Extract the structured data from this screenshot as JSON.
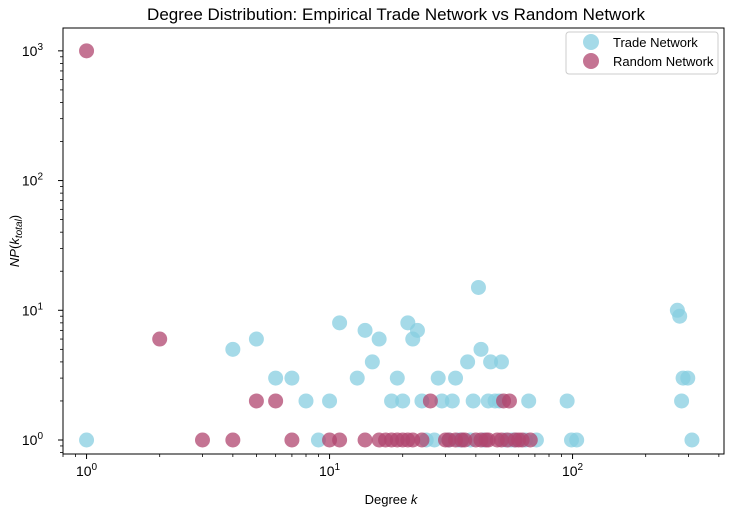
{
  "chart_data": {
    "type": "scatter",
    "title": "Degree Distribution: Empirical Trade Network vs Random Network",
    "xlabel": "Degree",
    "xlabel_var": "k",
    "ylabel": "NP",
    "ylabel_var": "k",
    "ylabel_sub": "total",
    "x_scale": "log",
    "y_scale": "log",
    "xlim": [
      0.8,
      420
    ],
    "ylim": [
      0.78,
      1500
    ],
    "x_ticks": [
      {
        "base": "10",
        "exp": "0",
        "value": 1
      },
      {
        "base": "10",
        "exp": "1",
        "value": 10
      },
      {
        "base": "10",
        "exp": "2",
        "value": 100
      }
    ],
    "y_ticks": [
      {
        "base": "10",
        "exp": "0",
        "value": 1
      },
      {
        "base": "10",
        "exp": "1",
        "value": 10
      },
      {
        "base": "10",
        "exp": "2",
        "value": 100
      },
      {
        "base": "10",
        "exp": "3",
        "value": 1000
      }
    ],
    "grid": false,
    "legend_position": "top-right",
    "series": [
      {
        "name": "Trade Network",
        "color": "#87CEE0",
        "points": [
          [
            1,
            1
          ],
          [
            4,
            5
          ],
          [
            5,
            6
          ],
          [
            6,
            3
          ],
          [
            7,
            3
          ],
          [
            8,
            2
          ],
          [
            9,
            1
          ],
          [
            10,
            2
          ],
          [
            11,
            8
          ],
          [
            13,
            3
          ],
          [
            14,
            7
          ],
          [
            15,
            4
          ],
          [
            16,
            6
          ],
          [
            18,
            2
          ],
          [
            19,
            3
          ],
          [
            20,
            2
          ],
          [
            21,
            8
          ],
          [
            22,
            6
          ],
          [
            23,
            7
          ],
          [
            24,
            2
          ],
          [
            25,
            1
          ],
          [
            27,
            1
          ],
          [
            28,
            3
          ],
          [
            29,
            2
          ],
          [
            31,
            1
          ],
          [
            32,
            2
          ],
          [
            33,
            3
          ],
          [
            34,
            1
          ],
          [
            35,
            1
          ],
          [
            37,
            4
          ],
          [
            38,
            1
          ],
          [
            39,
            2
          ],
          [
            41,
            15
          ],
          [
            42,
            5
          ],
          [
            43,
            1
          ],
          [
            45,
            2
          ],
          [
            46,
            4
          ],
          [
            48,
            2
          ],
          [
            50,
            2
          ],
          [
            51,
            4
          ],
          [
            53,
            1
          ],
          [
            56,
            1
          ],
          [
            58,
            1
          ],
          [
            64,
            1
          ],
          [
            66,
            2
          ],
          [
            71,
            1
          ],
          [
            95,
            2
          ],
          [
            99,
            1
          ],
          [
            104,
            1
          ],
          [
            270,
            10
          ],
          [
            276,
            9
          ],
          [
            281,
            2
          ],
          [
            285,
            3
          ],
          [
            298,
            3
          ],
          [
            310,
            1
          ]
        ]
      },
      {
        "name": "Random Network",
        "color": "#B0456F",
        "points": [
          [
            1,
            1000
          ],
          [
            2,
            6
          ],
          [
            3,
            1
          ],
          [
            4,
            1
          ],
          [
            5,
            2
          ],
          [
            6,
            2
          ],
          [
            7,
            1
          ],
          [
            10,
            1
          ],
          [
            11,
            1
          ],
          [
            14,
            1
          ],
          [
            16,
            1
          ],
          [
            17,
            1
          ],
          [
            18,
            1
          ],
          [
            19,
            1
          ],
          [
            20,
            1
          ],
          [
            21,
            1
          ],
          [
            22,
            1
          ],
          [
            24,
            1
          ],
          [
            26,
            2
          ],
          [
            30,
            1
          ],
          [
            31,
            1
          ],
          [
            33,
            1
          ],
          [
            35,
            1
          ],
          [
            36,
            1
          ],
          [
            40,
            1
          ],
          [
            42,
            1
          ],
          [
            44,
            1
          ],
          [
            45,
            1
          ],
          [
            49,
            1
          ],
          [
            51,
            1
          ],
          [
            52,
            2
          ],
          [
            54,
            1
          ],
          [
            55,
            2
          ],
          [
            58,
            1
          ],
          [
            60,
            1
          ],
          [
            62,
            1
          ],
          [
            67,
            1
          ]
        ]
      }
    ]
  }
}
